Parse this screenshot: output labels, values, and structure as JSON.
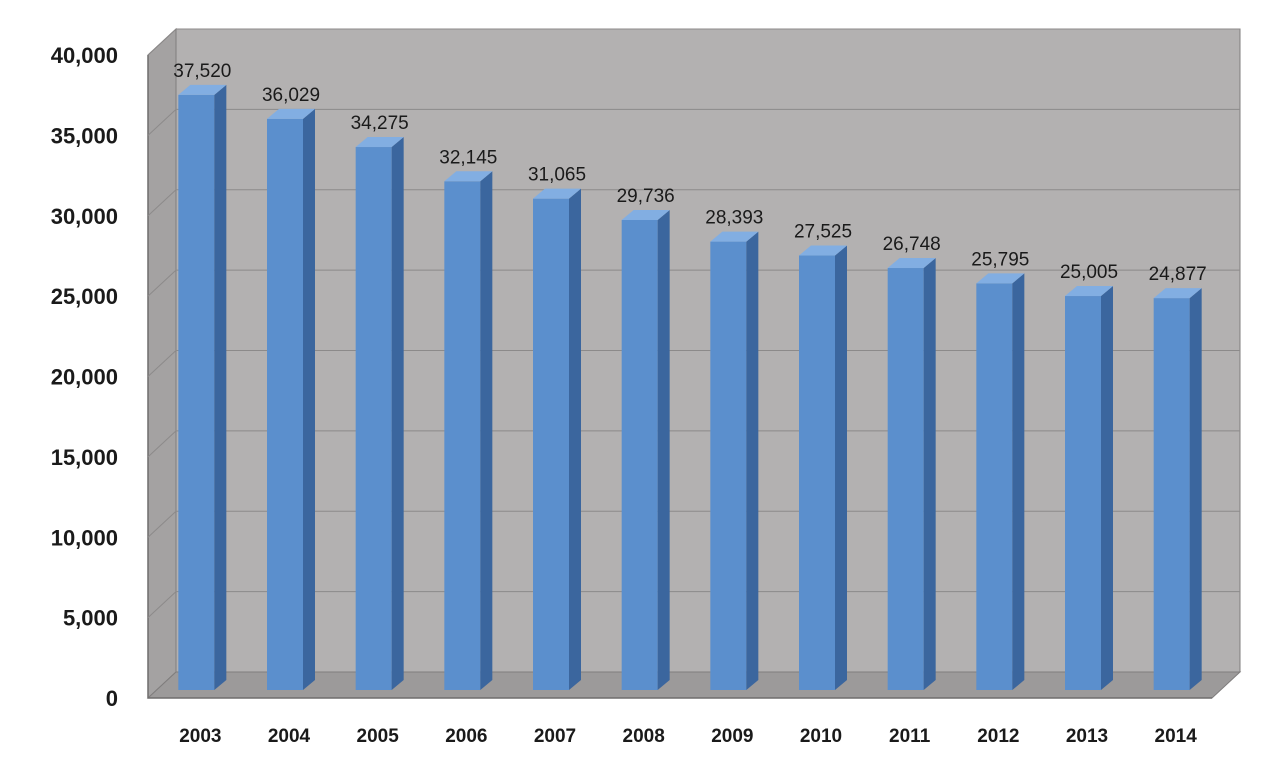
{
  "chart_data": {
    "type": "bar",
    "categories": [
      "2003",
      "2004",
      "2005",
      "2006",
      "2007",
      "2008",
      "2009",
      "2010",
      "2011",
      "2012",
      "2013",
      "2014"
    ],
    "values": [
      37520,
      36029,
      34275,
      32145,
      31065,
      29736,
      28393,
      27525,
      26748,
      25795,
      25005,
      24877
    ],
    "value_labels": [
      "37,520",
      "36,029",
      "34,275",
      "32,145",
      "31,065",
      "29,736",
      "28,393",
      "27,525",
      "26,748",
      "25,795",
      "25,005",
      "24,877"
    ],
    "y_ticks": [
      0,
      5000,
      10000,
      15000,
      20000,
      25000,
      30000,
      35000,
      40000
    ],
    "y_tick_labels": [
      "0",
      "5,000",
      "10,000",
      "15,000",
      "20,000",
      "25,000",
      "30,000",
      "35,000",
      "40,000"
    ],
    "ylim": [
      0,
      40000
    ],
    "title": "",
    "xlabel": "",
    "ylabel": "",
    "grid": true,
    "style": "3d-column",
    "colors": {
      "bar_front": "#5b8fcd",
      "bar_side": "#3b669e",
      "bar_top": "#82aee2",
      "plot_back": "#b3b1b1",
      "plot_floor": "#9c9a9a",
      "grid": "#8c8a8a"
    }
  }
}
